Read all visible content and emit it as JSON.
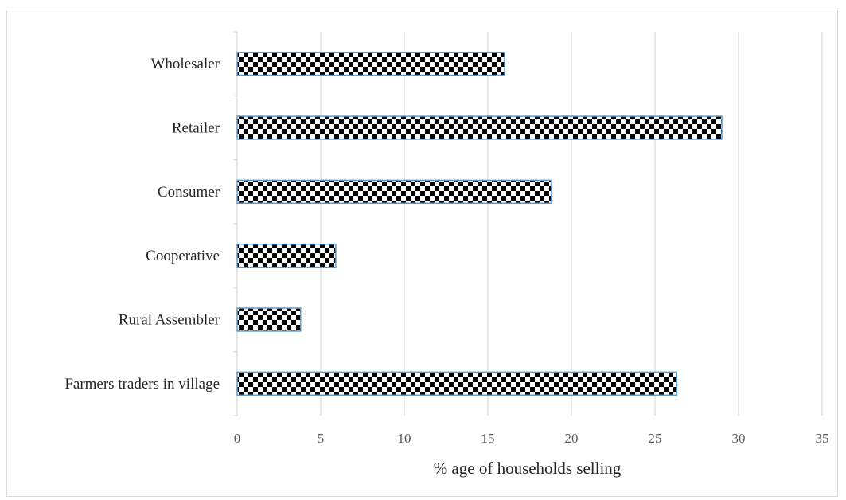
{
  "chart_data": {
    "type": "bar",
    "orientation": "horizontal",
    "categories": [
      "Wholesaler",
      "Retailer",
      "Consumer",
      "Cooperative",
      "Rural Assembler",
      "Farmers traders in village"
    ],
    "values": [
      16,
      29,
      18.8,
      5.9,
      3.8,
      26.3
    ],
    "xlabel": "% age of households selling",
    "ylabel": "",
    "xlim": [
      0,
      35
    ],
    "xticks": [
      "0",
      "5",
      "10",
      "15",
      "20",
      "25",
      "30",
      "35"
    ],
    "grid": "vertical",
    "bar_fill": "checkerboard",
    "bar_outline_color": "#5b9bd5",
    "pattern_colors": [
      "#000000",
      "#ffffff"
    ],
    "gridline_color": "#d9d9d9"
  }
}
